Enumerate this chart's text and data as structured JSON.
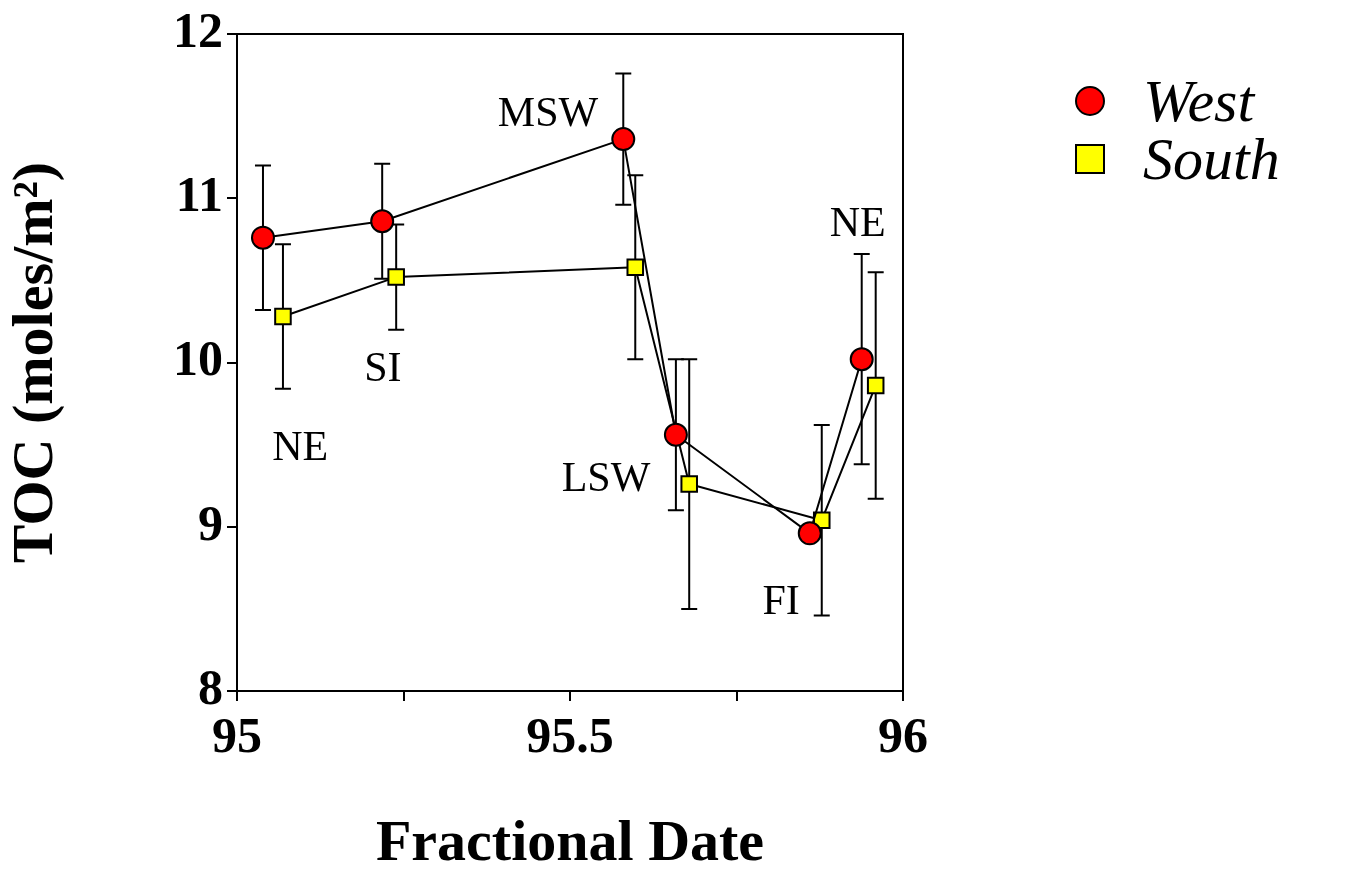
{
  "chart_data": {
    "type": "line",
    "xlabel": "Fractional Date",
    "ylabel": "TOC (moles/m²)",
    "xlim": [
      95,
      96
    ],
    "xticks": [
      95,
      {
        "value": 95.25,
        "label": null
      },
      95.5,
      {
        "value": 95.75,
        "label": null
      },
      96
    ],
    "ylim": [
      8,
      12
    ],
    "yticks": [
      8,
      9,
      10,
      11,
      12
    ],
    "grid": false,
    "legend": "top right",
    "series": [
      {
        "name": "West",
        "color": "#ff0000",
        "marker": "circle",
        "x": [
          95.039,
          95.218,
          95.58,
          95.659,
          95.86,
          95.938
        ],
        "values": [
          10.76,
          10.86,
          11.36,
          9.56,
          8.96,
          10.02
        ],
        "errors": [
          0.44,
          0.35,
          0.4,
          0.46,
          null,
          0.64
        ]
      },
      {
        "name": "South",
        "color": "#ffff00",
        "marker": "square",
        "x": [
          95.069,
          95.239,
          95.598,
          95.679,
          95.878,
          95.959
        ],
        "values": [
          10.28,
          10.52,
          10.58,
          9.26,
          9.04,
          9.86
        ],
        "errors": [
          0.44,
          0.32,
          0.56,
          0.76,
          0.58,
          0.69
        ]
      }
    ],
    "annotations": [
      "NE",
      "SI",
      "MSW",
      "LSW",
      "FI",
      "NE"
    ]
  }
}
